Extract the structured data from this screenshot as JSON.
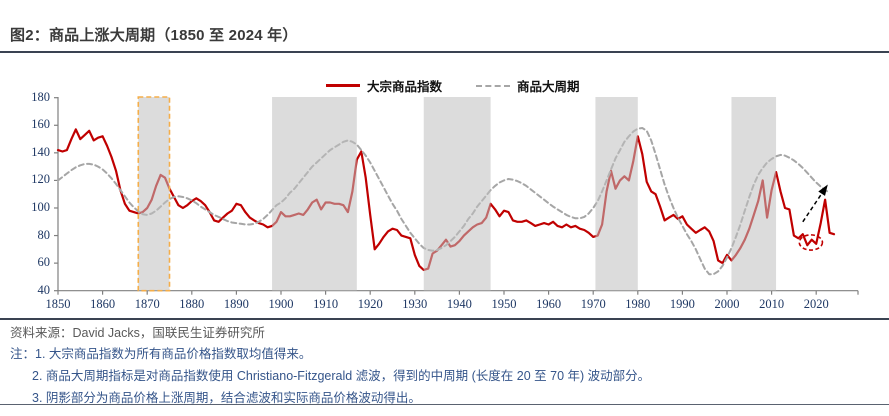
{
  "title": {
    "text": "图2：商品上涨大周期（1850 至 2024 年）"
  },
  "legend": [
    {
      "label": "大宗商品指数",
      "color": "#C00000",
      "style": "solid"
    },
    {
      "label": "商品大周期",
      "color": "#A6A6A6",
      "style": "dashed"
    }
  ],
  "chart_data": {
    "type": "line",
    "title": "商品上涨大周期（1850 至 2024 年）",
    "x_start": 1850,
    "x_end": 2024,
    "xlabel": "",
    "ylabel": "",
    "ylim": [
      40,
      180
    ],
    "yticks": [
      40,
      60,
      80,
      100,
      120,
      140,
      160,
      180
    ],
    "xticks": [
      1850,
      1860,
      1870,
      1880,
      1890,
      1900,
      1910,
      1920,
      1930,
      1940,
      1950,
      1960,
      1970,
      1980,
      1990,
      2000,
      2010,
      2020
    ],
    "grid": false,
    "legend_position": "top-center",
    "series": [
      {
        "name": "大宗商品指数",
        "color": "#C00000",
        "dash": false,
        "values": [
          142,
          141,
          142,
          150,
          157,
          150,
          153,
          156,
          149,
          151,
          152,
          145,
          137,
          127,
          113,
          103,
          98,
          97,
          96,
          97,
          100,
          106,
          116,
          124,
          122,
          114,
          108,
          102,
          100,
          102,
          105,
          107,
          105,
          102,
          97,
          91,
          90,
          93,
          96,
          98,
          103,
          102,
          97,
          93,
          91,
          89,
          88,
          86,
          87,
          90,
          97,
          94,
          94,
          95,
          96,
          95,
          99,
          104,
          106,
          99,
          104,
          104,
          103,
          103,
          102,
          97,
          112,
          135,
          141,
          122,
          95,
          70,
          74,
          79,
          83,
          85,
          84,
          80,
          79,
          78,
          66,
          58,
          55,
          56,
          67,
          69,
          73,
          77,
          72,
          73,
          76,
          80,
          83,
          86,
          88,
          89,
          93,
          103,
          99,
          94,
          98,
          97,
          91,
          90,
          90,
          91,
          89,
          87,
          88,
          89,
          88,
          90,
          87,
          86,
          88,
          86,
          87,
          85,
          84,
          82,
          79,
          80,
          88,
          112,
          127,
          114,
          120,
          123,
          120,
          134,
          152,
          139,
          119,
          112,
          110,
          101,
          91,
          93,
          95,
          92,
          94,
          88,
          85,
          82,
          84,
          86,
          83,
          76,
          62,
          60,
          66,
          62,
          66,
          71,
          77,
          85,
          95,
          105,
          120,
          93,
          113,
          126,
          112,
          100,
          99,
          80,
          78,
          81,
          73,
          77,
          74,
          89,
          106,
          82,
          81
        ]
      },
      {
        "name": "商品大周期",
        "color": "#A6A6A6",
        "dash": true,
        "values": [
          120,
          122.5,
          125,
          127.5,
          129.5,
          131,
          132,
          132,
          131.5,
          130,
          128,
          125,
          121.5,
          117.5,
          113,
          108.5,
          104,
          100.5,
          97.5,
          95.5,
          95,
          96,
          98,
          101,
          104,
          106.5,
          108,
          108.5,
          108,
          107,
          105.5,
          103.5,
          101,
          99,
          97,
          95,
          93.5,
          92,
          90.5,
          89.5,
          89,
          88.5,
          88,
          88,
          88.5,
          90,
          92,
          95,
          98.5,
          102,
          104,
          107,
          111,
          114,
          118,
          122,
          126,
          130,
          133,
          136,
          139,
          142,
          144,
          146,
          148,
          149,
          148,
          146,
          142,
          138,
          133,
          127,
          121,
          115,
          109,
          103,
          98,
          92,
          87,
          82,
          78,
          74,
          71,
          69.5,
          69,
          69.5,
          71,
          73,
          76,
          79,
          83,
          87,
          92,
          96,
          101,
          105,
          109,
          113,
          116,
          118.5,
          120,
          121,
          120.5,
          119.5,
          118,
          116,
          113.5,
          111,
          108.5,
          106,
          103.5,
          101,
          99,
          97,
          95,
          93.5,
          92.5,
          92.5,
          93.5,
          96,
          100,
          105,
          112,
          120,
          128,
          136,
          142,
          148,
          152,
          155.5,
          157.5,
          158,
          156,
          149,
          139,
          128,
          117,
          108,
          100,
          93,
          87,
          81,
          76,
          70,
          63,
          56,
          52,
          52,
          54,
          58,
          64,
          71,
          79,
          88,
          98,
          108,
          117,
          124,
          129,
          133,
          135.5,
          137.5,
          138.5,
          138,
          136.5,
          134.5,
          132,
          129,
          125.5,
          122,
          118.5,
          115.5,
          113,
          111
        ]
      }
    ],
    "shaded_regions": [
      {
        "from": 1898,
        "to": 1917
      },
      {
        "from": 1932,
        "to": 1947
      },
      {
        "from": 1970.5,
        "to": 1980
      },
      {
        "from": 2001,
        "to": 2011
      }
    ],
    "shaded_color": "#BFBFBF",
    "highlight_box": {
      "from": 1868,
      "to": 1875,
      "border_color": "#F5AE49"
    },
    "annotations": {
      "arrow": {
        "from_year": 2017,
        "from_value": 90,
        "to_year": 2022.6,
        "to_value": 117,
        "color": "#000000",
        "style": "dashed"
      },
      "ellipse": {
        "year": 2018.8,
        "value": 75,
        "rx_years": 2.6,
        "ry_values": 5.5,
        "color": "#C00000",
        "style": "dashed"
      }
    }
  },
  "footer": {
    "source": "资料来源：David Jacks，国联民生证券研究所",
    "notes": [
      "注：1. 大宗商品指数为所有商品价格指数取均值得来。",
      "2. 商品大周期指标是对商品指数使用 Christiano-Fitzgerald 滤波，得到的中周期 (长度在 20 至 70 年) 波动部分。",
      "3. 阴影部分为商品价格上涨周期，结合滤波和实际商品价格波动得出。"
    ]
  }
}
